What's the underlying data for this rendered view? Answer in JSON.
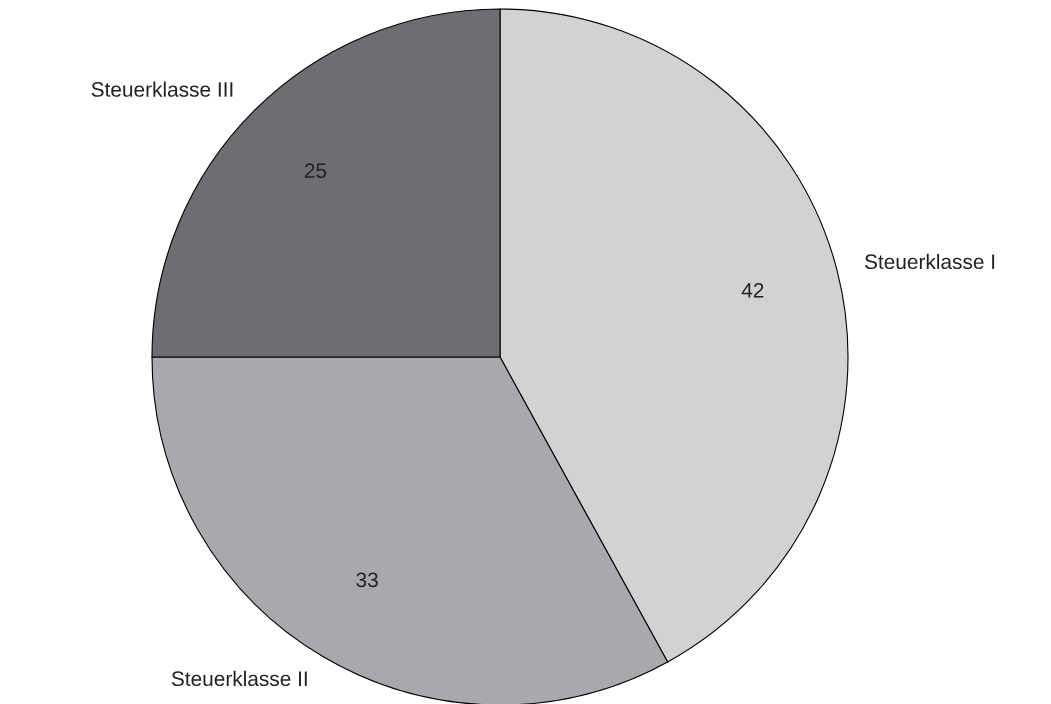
{
  "chart_data": {
    "type": "pie",
    "categories": [
      "Steuerklasse I",
      "Steuerklasse II",
      "Steuerklasse III"
    ],
    "values": [
      42,
      33,
      25
    ],
    "colors": [
      "#d1d2d4",
      "#a7a9ac",
      "#6d6e71"
    ],
    "data_labels": true
  }
}
